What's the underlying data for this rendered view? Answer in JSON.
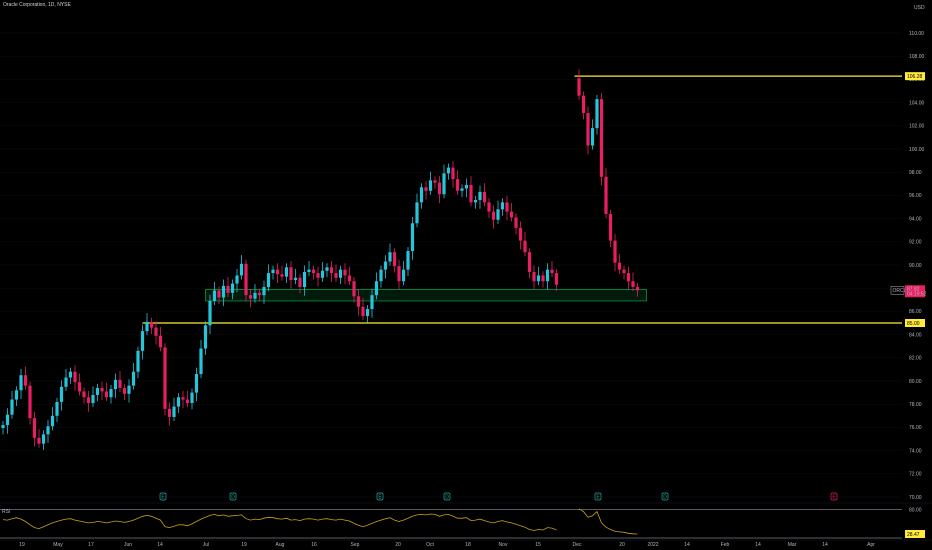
{
  "header": {
    "title": "Oracle Corporation, 1D, NYSE"
  },
  "currency": "USD",
  "symbol": "ORCL",
  "last_price": "87.82",
  "countdown": "04:19:52",
  "levels": [
    {
      "label": "106.28",
      "value": 106.28,
      "start": 127
    },
    {
      "label": "85.00",
      "value": 85.0,
      "start": 31
    }
  ],
  "zone": {
    "low": 86.9,
    "high": 87.9,
    "start": 45,
    "end": 143
  },
  "rsi": {
    "label": "RSI",
    "value_label": "28.47",
    "upper": 80.0,
    "upper_label": "80.00"
  },
  "events": [
    "E",
    "D",
    "E",
    "D",
    "E",
    "D",
    "E"
  ],
  "y_ticks": [
    "110.00",
    "108.00",
    "106.00",
    "104.00",
    "102.00",
    "100.00",
    "98.00",
    "96.00",
    "94.00",
    "92.00",
    "90.00",
    "88.00",
    "86.00",
    "84.00",
    "82.00",
    "80.00",
    "78.00",
    "76.00",
    "74.00",
    "72.00",
    "70.00"
  ],
  "x_ticks": [
    "19",
    "May",
    "17",
    "Jun",
    "14",
    "Jul",
    "19",
    "Aug",
    "16",
    "Sep",
    "20",
    "Oct",
    "18",
    "Nov",
    "15",
    "Dec",
    "20",
    "2022",
    "14",
    "Feb",
    "14",
    "Mar",
    "14",
    "Apr"
  ],
  "colors": {
    "up": "#26c6da",
    "down": "#e91e63",
    "level": "#ffeb3b",
    "zone": "#00c853",
    "rsi": "#c8a21a"
  },
  "chart_data": {
    "type": "candlestick",
    "title": "Oracle Corporation, 1D, NYSE",
    "ylim": [
      69,
      112
    ],
    "x_ticks": [
      "19",
      "May",
      "17",
      "Jun",
      "14",
      "Jul",
      "19",
      "Aug",
      "16",
      "Sep",
      "20",
      "Oct",
      "18",
      "Nov",
      "15",
      "Dec",
      "20",
      "2022",
      "14",
      "Feb",
      "14",
      "Mar",
      "14",
      "Apr"
    ],
    "closes": [
      76.2,
      77.1,
      78.4,
      79.2,
      80.5,
      79.6,
      76.8,
      75.1,
      74.6,
      75.4,
      76.1,
      77.0,
      78.2,
      79.5,
      80.3,
      80.8,
      79.9,
      79.1,
      78.6,
      78.1,
      78.8,
      79.4,
      79.1,
      78.6,
      79.3,
      80.1,
      79.4,
      78.9,
      79.6,
      80.8,
      82.6,
      84.3,
      85.1,
      84.6,
      83.9,
      82.9,
      77.6,
      76.9,
      77.8,
      78.6,
      78.4,
      78.1,
      79.0,
      80.6,
      82.8,
      84.8,
      86.9,
      87.8,
      87.2,
      88.2,
      87.6,
      88.4,
      89.1,
      90.1,
      87.4,
      87.1,
      87.6,
      87.4,
      88.1,
      89.3,
      89.6,
      89.2,
      89.0,
      89.8,
      88.7,
      88.9,
      88.1,
      89.4,
      89.6,
      89.3,
      88.9,
      89.5,
      89.8,
      89.3,
      88.9,
      89.6,
      89.1,
      88.6,
      87.3,
      86.4,
      85.6,
      86.2,
      87.4,
      88.6,
      89.6,
      90.3,
      91.1,
      89.9,
      88.6,
      89.6,
      91.2,
      93.6,
      95.4,
      96.7,
      96.4,
      97.3,
      97.1,
      96.1,
      97.9,
      98.4,
      97.4,
      96.4,
      96.6,
      96.9,
      95.4,
      95.6,
      96.3,
      95.4,
      94.6,
      93.9,
      94.8,
      95.4,
      94.6,
      94.1,
      93.2,
      92.1,
      91.1,
      89.4,
      88.6,
      89.1,
      88.6,
      89.6,
      89.3,
      88.3,
      null,
      null,
      null,
      null,
      104.6,
      103.1,
      100.3,
      101.8,
      104.3,
      97.6,
      94.4,
      92.1,
      90.2,
      89.6,
      89.3,
      88.6,
      88.1,
      87.82
    ],
    "rsi": [
      59,
      58,
      61,
      63,
      60,
      55,
      48,
      42,
      40,
      44,
      48,
      52,
      55,
      58,
      60,
      61,
      58,
      56,
      54,
      52,
      53,
      55,
      54,
      52,
      54,
      56,
      55,
      53,
      55,
      58,
      62,
      66,
      68,
      66,
      62,
      58,
      44,
      42,
      45,
      48,
      48,
      46,
      50,
      55,
      60,
      64,
      68,
      70,
      67,
      69,
      66,
      67,
      68,
      69,
      61,
      58,
      60,
      59,
      62,
      64,
      63,
      61,
      60,
      62,
      58,
      59,
      57,
      60,
      61,
      60,
      58,
      60,
      61,
      59,
      58,
      60,
      58,
      56,
      51,
      47,
      44,
      47,
      51,
      55,
      58,
      61,
      63,
      58,
      55,
      58,
      62,
      66,
      69,
      70,
      69,
      71,
      70,
      66,
      69,
      70,
      66,
      62,
      62,
      63,
      57,
      58,
      60,
      57,
      54,
      52,
      55,
      57,
      54,
      52,
      49,
      46,
      43,
      38,
      36,
      38,
      37,
      42,
      41,
      37,
      null,
      null,
      null,
      null,
      82,
      76,
      64,
      67,
      76,
      52,
      43,
      38,
      34,
      33,
      32,
      30,
      29,
      28.47
    ]
  }
}
